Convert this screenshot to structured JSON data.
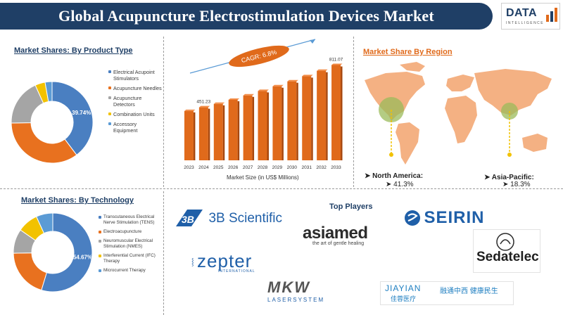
{
  "header": {
    "title": "Global Acupuncture Electrostimulation Devices Market",
    "logo_text": "DATA",
    "logo_sub": "INTELLIGENCE"
  },
  "colors": {
    "navy": "#1f3f66",
    "orange": "#e06a1b",
    "blue": "#4a7fc1",
    "gray": "#a5a5a5",
    "yellow": "#f2c200",
    "lightblue": "#5b9bd5"
  },
  "sections": {
    "product_title": "Market Shares: By Product Type",
    "technology_title": "Market Shares: By Technology",
    "region_title": "Market Share By Region",
    "market_size_xlabel": "Market Size (in US$ Millions)",
    "cagr_label": "CAGR: 6.8%",
    "top_players_title": "Top Players"
  },
  "regions": {
    "north_america_label": "North America:",
    "north_america_value": "41.3%",
    "asia_pacific_label": "Asia-Pacific:",
    "asia_pacific_value": "18.3%"
  },
  "players": {
    "p1": "3B Scientific",
    "p2": "asiamed",
    "p2_tag": "the art of gentle healing",
    "p3": "SEIRIN",
    "p4": "Sedatelec",
    "p5": "zepter",
    "p5_sub": "INTERNATIONAL",
    "p6": "MKW",
    "p6_sub": "LASERSYSTEM",
    "p7": "JIAYIAN",
    "p7_sub": "佳蓉医疗",
    "p7_cn": "融通中西 健康民生"
  },
  "chart_data": [
    {
      "type": "pie",
      "title": "Market Shares: By Product Type",
      "categories": [
        "Electrical Acupoint Stimulators",
        "Acupuncture Needles",
        "Acupuncture Detectors",
        "Combination Units",
        "Accessory Equipment"
      ],
      "values": [
        39.74,
        35.0,
        18.5,
        4.0,
        2.76
      ],
      "data_labels": [
        "39.74%",
        "",
        "",
        "",
        ""
      ],
      "colors": [
        "#4a7fc1",
        "#e8711f",
        "#a5a5a5",
        "#f2c200",
        "#5b9bd5"
      ],
      "legend_position": "right"
    },
    {
      "type": "pie",
      "title": "Market Shares: By Technology",
      "categories": [
        "Transcutaneous Electrical Nerve Stimulation (TENS)",
        "Electroacupuncture",
        "Neuromuscular Electrical Stimulation (NMES)",
        "Interferential Current (IFC) Therapy",
        "Microcurrent Therapy"
      ],
      "values": [
        54.67,
        20.0,
        10.0,
        8.5,
        6.83
      ],
      "data_labels": [
        "54.67%",
        "",
        "",
        "",
        ""
      ],
      "colors": [
        "#4a7fc1",
        "#e8711f",
        "#a5a5a5",
        "#f2c200",
        "#5b9bd5"
      ],
      "legend_position": "right"
    },
    {
      "type": "bar",
      "title": "",
      "xlabel": "Market Size (in US$ Millions)",
      "ylabel": "",
      "categories": [
        "2023",
        "2024",
        "2025",
        "2026",
        "2027",
        "2028",
        "2029",
        "2030",
        "2031",
        "2032",
        "2033"
      ],
      "values": [
        420,
        451.23,
        480,
        515,
        552,
        590,
        630,
        672,
        716,
        762,
        811.07
      ],
      "data_labels": [
        "",
        "451.23",
        "",
        "",
        "",
        "",
        "",
        "",
        "",
        "",
        "811.07"
      ],
      "ylim": [
        0,
        850
      ],
      "color": "#e06a1b"
    }
  ]
}
